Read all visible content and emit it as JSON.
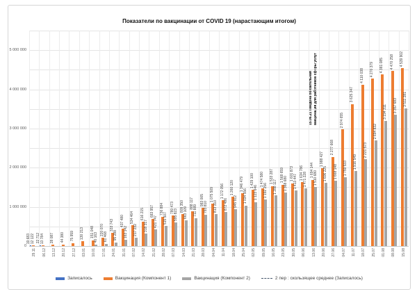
{
  "title": "Показатели по вакцинации от COVID 19 (нарастающим итогом)",
  "annotation": {
    "line1": "15.06.21 Введена обязательная",
    "line2": "вакцинация для работников сферы услуг",
    "between_categories": [
      "13.06",
      "20.06"
    ]
  },
  "y_axis": {
    "min": 0,
    "max": 5500000,
    "grid_step": 500000,
    "tick_values": [
      0,
      1000000,
      2000000,
      3000000,
      4000000,
      5000000
    ],
    "tick_labels": [
      "0",
      "1 000 000",
      "2 000 000",
      "3 000 000",
      "4 000 000",
      "5 000 000"
    ]
  },
  "legend": {
    "items": [
      {
        "label": "Записалось",
        "series": "zapisalos",
        "type": "bar"
      },
      {
        "label": "Вакцинация (Компонент 1)",
        "series": "comp1",
        "type": "bar"
      },
      {
        "label": "Вакцинация (Компонент 2)",
        "series": "comp2",
        "type": "bar"
      },
      {
        "label": "2 пер : скользящее среднее (Записалось)",
        "series": "moving_avg",
        "type": "dashed-line"
      }
    ]
  },
  "chart_data": {
    "type": "bar",
    "title": "Показатели по вакцинации от COVID 19 (нарастающим итогом)",
    "xlabel": "",
    "ylabel": "",
    "ylim": [
      0,
      5500000
    ],
    "grid": true,
    "legend_position": "bottom",
    "categories": [
      "29.11",
      "06.12",
      "13.12",
      "20.12",
      "27.12",
      "03.01",
      "10.01",
      "17.01",
      "24.01",
      "31.01",
      "07.02",
      "14.02",
      "21.02",
      "28.02",
      "07.03",
      "14.03",
      "21.03",
      "28.03",
      "04.04",
      "11.04",
      "18.04",
      "25.04",
      "02.05",
      "09.05",
      "16.05",
      "23.05",
      "30.05",
      "06.06",
      "13.06",
      "20.06",
      "27.06",
      "04.07",
      "11.07",
      "18.07",
      "25.07",
      "01.08",
      "08.08",
      "15.08"
    ],
    "series": [
      {
        "name": "Записалось",
        "color": "#4472C4",
        "values": [
          19683,
          22712,
          null,
          null,
          null,
          null,
          null,
          null,
          null,
          null,
          null,
          null,
          null,
          null,
          null,
          null,
          null,
          null,
          null,
          null,
          null,
          null,
          null,
          null,
          null,
          null,
          null,
          null,
          null,
          null,
          null,
          null,
          null,
          null,
          null,
          null,
          null,
          null
        ]
      },
      {
        "name": "Вакцинация (Компонент 1)",
        "color": "#ED7D31",
        "values": [
          12122,
          13784,
          28087,
          44380,
          75959,
          130213,
          151048,
          220070,
          333743,
          437480,
          534464,
          616215,
          683957,
          736884,
          780473,
          809350,
          888117,
          983005,
          1075509,
          1172056,
          1260120,
          1346479,
          1429100,
          1474580,
          1533287,
          1568659,
          1601873,
          1634786,
          1694144,
          1988427,
          2277668,
          2974655,
          3625347,
          4110038,
          4270379,
          4381085,
          4470258,
          4539902
        ]
      },
      {
        "name": "Вакцинация (Компонент 2)",
        "color": "#A5A5A5",
        "values": [
          null,
          null,
          null,
          null,
          null,
          null,
          40163,
          61468,
          95288,
          163142,
          217232,
          318317,
          421747,
          515507,
          595823,
          663109,
          711889,
          793810,
          813310,
          872486,
          945912,
          1034556,
          1123646,
          1192256,
          1288117,
          1368680,
          1413447,
          1471228,
          1510680,
          1606225,
          1668148,
          1759533,
          1916549,
          2221573,
          2694832,
          3194311,
          3357683,
          3511281
        ]
      },
      {
        "name": "2 пер : скользящее среднее (Записалось)",
        "color": "#44546A",
        "type": "dashed-line",
        "values": null
      }
    ],
    "annotation_line_after_index": 28
  }
}
